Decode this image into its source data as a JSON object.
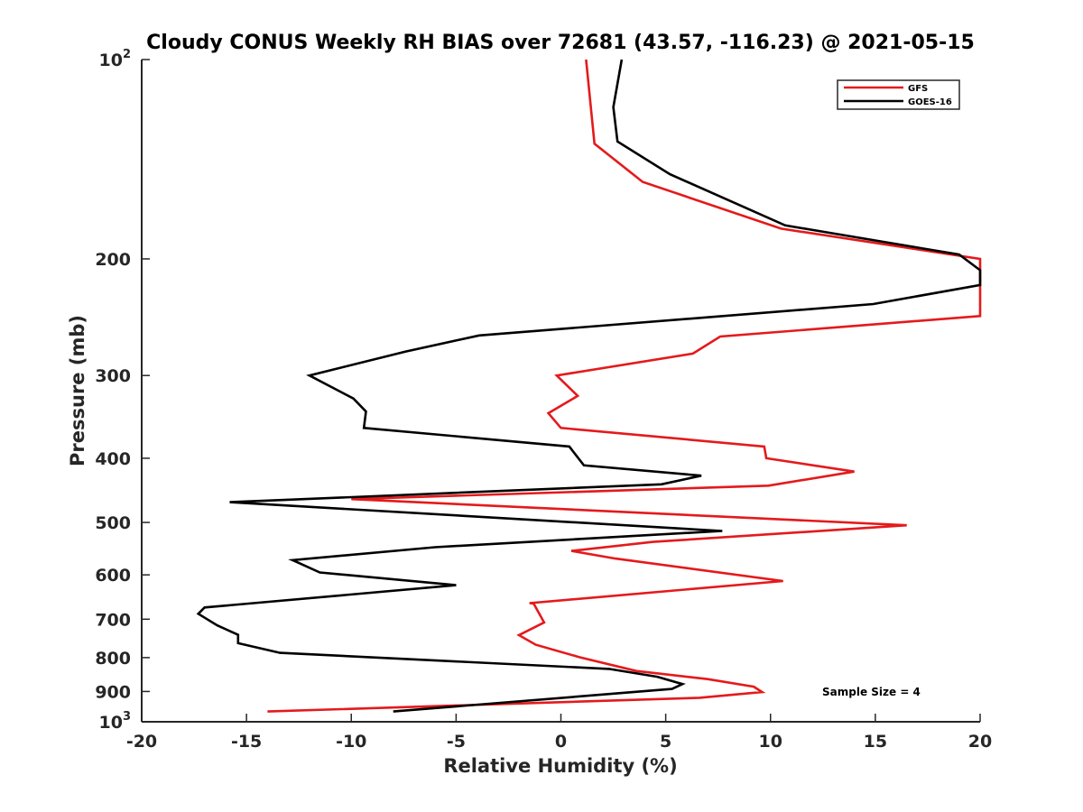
{
  "chart_data": {
    "type": "line",
    "title": "Cloudy CONUS Weekly RH BIAS over 72681 (43.57, -116.23) @ 2021-05-15",
    "xlabel": "Relative Humidity (%)",
    "ylabel": "Pressure (mb)",
    "xlim": [
      -20,
      20
    ],
    "ylim": [
      100,
      1000
    ],
    "y_scale": "log",
    "y_reversed": true,
    "grid": false,
    "legend_position": "top-right",
    "x_ticks": [
      "-20",
      "-15",
      "-10",
      "-5",
      "0",
      "5",
      "10",
      "15",
      "20"
    ],
    "y_ticks": [
      {
        "base": "10",
        "exp": "2"
      },
      {
        "base": "200",
        "exp": ""
      },
      {
        "base": "300",
        "exp": ""
      },
      {
        "base": "400",
        "exp": ""
      },
      {
        "base": "500",
        "exp": ""
      },
      {
        "base": "600",
        "exp": ""
      },
      {
        "base": "700",
        "exp": ""
      },
      {
        "base": "800",
        "exp": ""
      },
      {
        "base": "900",
        "exp": ""
      },
      {
        "base": "10",
        "exp": "3"
      }
    ],
    "annotation": "Sample Size = 4",
    "series": [
      {
        "name": "GFS",
        "color": "#e41a1c",
        "points": [
          [
            1.2,
            100
          ],
          [
            1.6,
            134
          ],
          [
            3.9,
            153
          ],
          [
            10.5,
            180
          ],
          [
            20.0,
            200
          ],
          [
            20.0,
            244
          ],
          [
            7.6,
            262
          ],
          [
            6.3,
            278
          ],
          [
            -0.2,
            300
          ],
          [
            0.8,
            322
          ],
          [
            -0.6,
            342
          ],
          [
            0.0,
            360
          ],
          [
            9.7,
            384
          ],
          [
            9.8,
            400
          ],
          [
            14.0,
            419
          ],
          [
            9.9,
            440
          ],
          [
            -10.0,
            461
          ],
          [
            16.5,
            505
          ],
          [
            4.4,
            535
          ],
          [
            0.5,
            552
          ],
          [
            2.6,
            567
          ],
          [
            10.6,
            613
          ],
          [
            -1.5,
            662
          ],
          [
            -1.3,
            663
          ],
          [
            -0.8,
            708
          ],
          [
            -2.0,
            740
          ],
          [
            -1.2,
            765
          ],
          [
            0.9,
            799
          ],
          [
            3.6,
            838
          ],
          [
            7.0,
            862
          ],
          [
            9.2,
            885
          ],
          [
            9.6,
            902
          ],
          [
            6.6,
            920
          ],
          [
            -14.0,
            965
          ]
        ]
      },
      {
        "name": "GOES-16",
        "color": "#000000",
        "points": [
          [
            2.9,
            100
          ],
          [
            2.5,
            118
          ],
          [
            2.7,
            133
          ],
          [
            5.2,
            149
          ],
          [
            10.7,
            178
          ],
          [
            19.0,
            197
          ],
          [
            20.0,
            208
          ],
          [
            20.0,
            219
          ],
          [
            14.9,
            234
          ],
          [
            -3.9,
            261
          ],
          [
            -7.4,
            276
          ],
          [
            -12.0,
            300
          ],
          [
            -9.9,
            325
          ],
          [
            -9.3,
            340
          ],
          [
            -9.4,
            360
          ],
          [
            0.4,
            384
          ],
          [
            1.1,
            410
          ],
          [
            6.7,
            425
          ],
          [
            4.8,
            438
          ],
          [
            -15.8,
            466
          ],
          [
            7.7,
            515
          ],
          [
            -6.0,
            545
          ],
          [
            -12.8,
            570
          ],
          [
            -11.5,
            595
          ],
          [
            -5.0,
            622
          ],
          [
            -17.0,
            672
          ],
          [
            -17.3,
            687
          ],
          [
            -16.4,
            715
          ],
          [
            -15.4,
            739
          ],
          [
            -15.4,
            761
          ],
          [
            -13.4,
            787
          ],
          [
            2.3,
            832
          ],
          [
            4.6,
            855
          ],
          [
            5.8,
            877
          ],
          [
            5.3,
            892
          ],
          [
            -8.0,
            965
          ]
        ]
      }
    ]
  }
}
